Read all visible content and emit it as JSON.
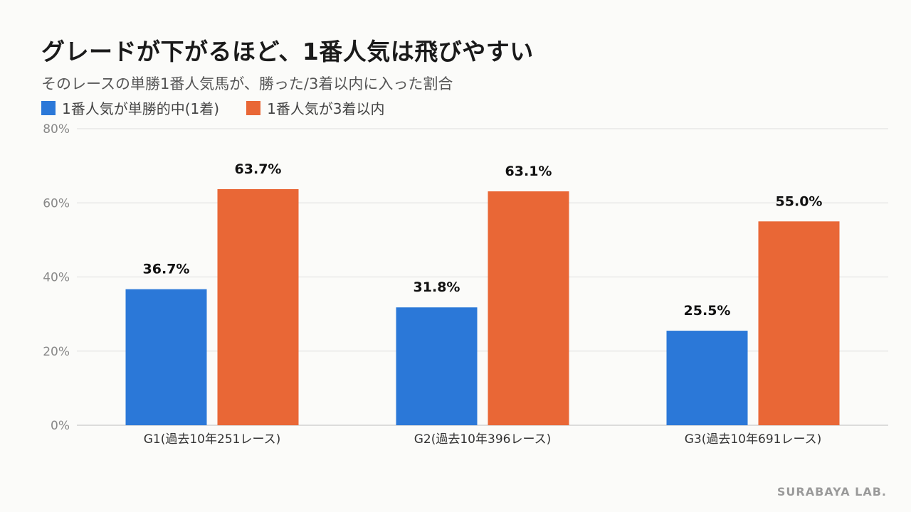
{
  "title": "グレードが下がるほど、1番人気は飛びやすい",
  "subtitle": "そのレースの単勝1番人気馬が、勝った/3着以内に入った割合",
  "watermark": "SURABAYA LAB.",
  "colors": {
    "win": "#2b78d8",
    "top3": "#e96736",
    "grid": "#dddddd",
    "axis": "#bdbdbd"
  },
  "chart_data": {
    "type": "bar",
    "categories": [
      "G1(過去10年251レース)",
      "G2(過去10年396レース)",
      "G3(過去10年691レース)"
    ],
    "series": [
      {
        "name": "1番人気が単勝的中(1着)",
        "values": [
          36.7,
          31.8,
          25.5
        ],
        "color": "#2b78d8"
      },
      {
        "name": "1番人気が3着以内",
        "values": [
          63.7,
          63.1,
          55.0
        ],
        "color": "#e96736"
      }
    ],
    "value_labels": [
      [
        "36.7%",
        "31.8%",
        "25.5%"
      ],
      [
        "63.7%",
        "63.1%",
        "55.0%"
      ]
    ],
    "ylim": [
      0,
      80
    ],
    "yticks": [
      "0%",
      "20%",
      "40%",
      "60%",
      "80%"
    ],
    "ytick_values": [
      0,
      20,
      40,
      60,
      80
    ],
    "grid": true,
    "legend_position": "top-left"
  }
}
